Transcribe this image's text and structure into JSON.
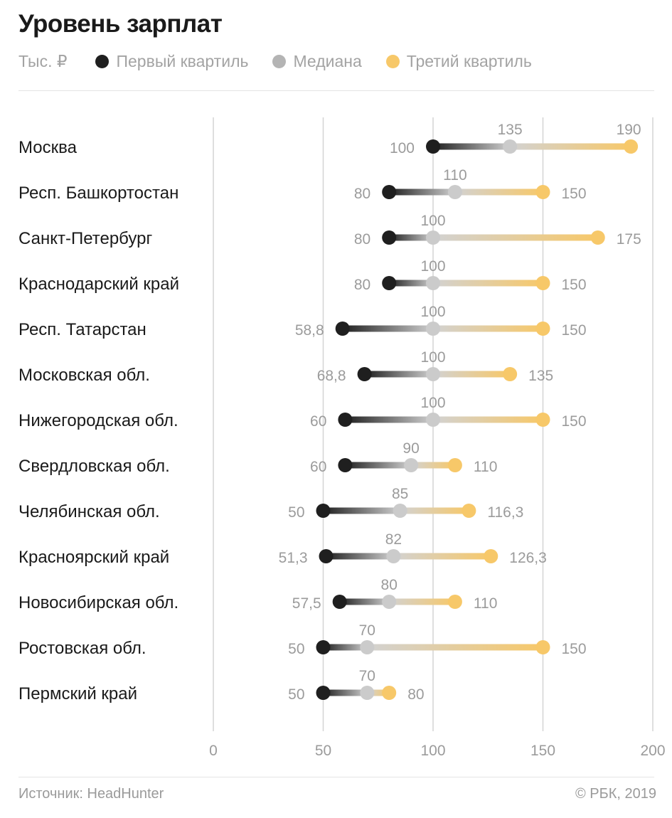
{
  "title": "Уровень зарплат",
  "legend": {
    "unit": "Тыс. ₽",
    "items": [
      {
        "label": "Первый квартиль",
        "color": "#1f1f1f"
      },
      {
        "label": "Медиана",
        "color": "#b4b4b4"
      },
      {
        "label": "Третий квартиль",
        "color": "#f7c869"
      }
    ]
  },
  "chart_data": {
    "type": "dumbbell",
    "title": "Уровень зарплат",
    "unit": "Тыс. ₽",
    "xlim": [
      0,
      200
    ],
    "x_ticks": [
      "0",
      "50",
      "100",
      "150",
      "200"
    ],
    "grid": "vertical lines at 0, 50, 100, 150, 200",
    "categories": [
      "Москва",
      "Респ. Башкортостан",
      "Санкт-Петербург",
      "Краснодарский край",
      "Респ. Татарстан",
      "Московская обл.",
      "Нижегородская обл.",
      "Свердловская обл.",
      "Челябинская обл.",
      "Красноярский край",
      "Новосибирская обл.",
      "Ростовская обл.",
      "Пермский край"
    ],
    "series": [
      {
        "name": "Первый квартиль",
        "values": [
          100,
          80,
          80,
          80,
          58.8,
          68.8,
          60,
          60,
          50,
          51.3,
          57.5,
          50,
          50
        ],
        "labels": [
          "100",
          "80",
          "80",
          "80",
          "58,8",
          "68,8",
          "60",
          "60",
          "50",
          "51,3",
          "57,5",
          "50",
          "50"
        ]
      },
      {
        "name": "Медиана",
        "values": [
          135,
          110,
          100,
          100,
          100,
          100,
          100,
          90,
          85,
          82,
          80,
          70,
          70
        ],
        "labels": [
          "135",
          "110",
          "100",
          "100",
          "100",
          "100",
          "100",
          "90",
          "85",
          "82",
          "80",
          "70",
          "70"
        ]
      },
      {
        "name": "Третий квартиль",
        "values": [
          190,
          150,
          175,
          150,
          150,
          135,
          150,
          110,
          116.3,
          126.3,
          110,
          150,
          80
        ],
        "labels": [
          "190",
          "150",
          "175",
          "150",
          "150",
          "135",
          "150",
          "110",
          "116,3",
          "126,3",
          "110",
          "150",
          "80"
        ]
      }
    ]
  },
  "footer": {
    "source": "Источник: HeadHunter",
    "copyright": "© РБК, 2019"
  }
}
